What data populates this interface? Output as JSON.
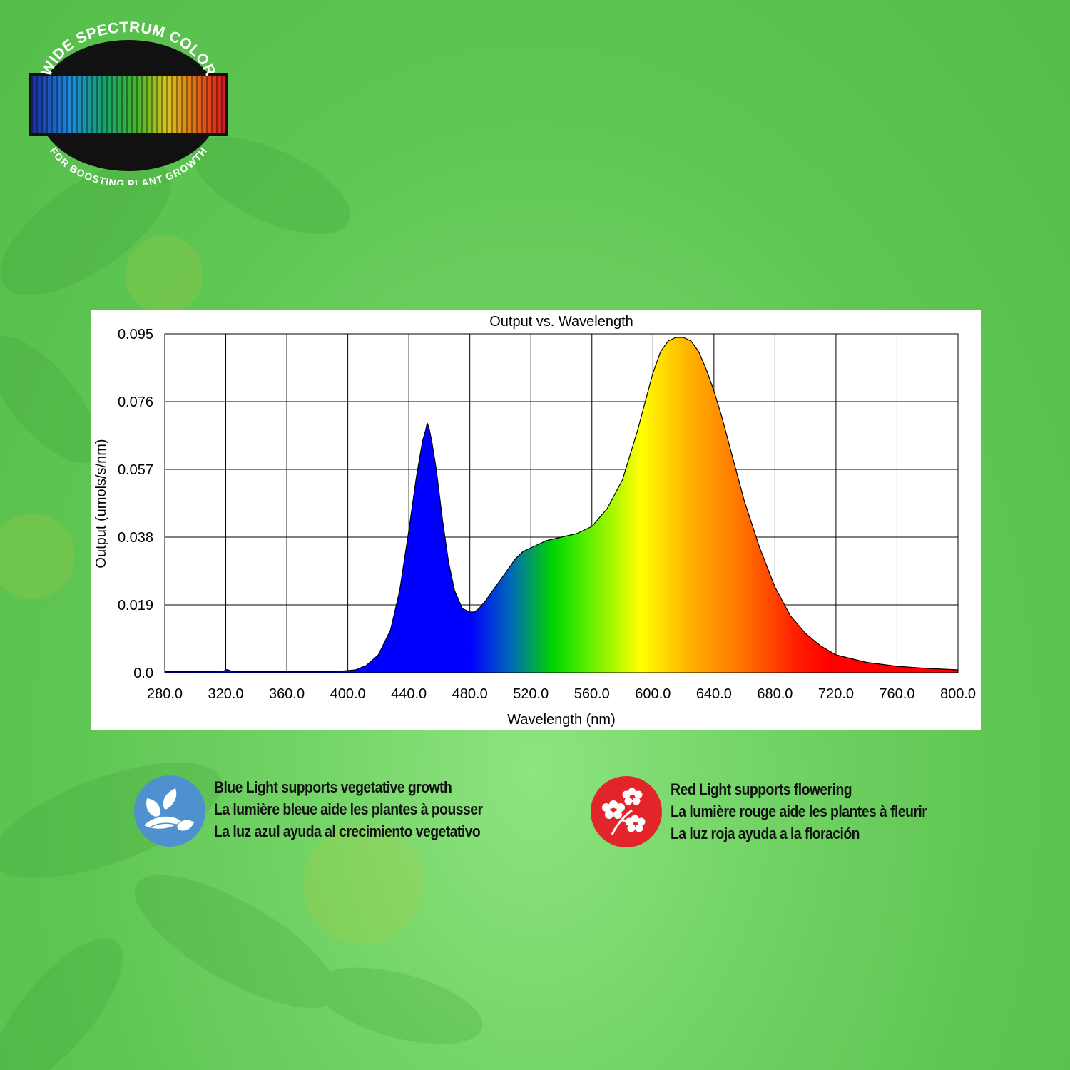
{
  "logo": {
    "top_text": "WIDE SPECTRUM COLOR",
    "bottom_text": "FOR BOOSTING PLANT GROWTH"
  },
  "colors": {
    "blue_badge": "#4f90cf",
    "red_badge": "#e2252b"
  },
  "chart_data": {
    "type": "area",
    "title": "Output vs. Wavelength",
    "xlabel": "Wavelength (nm)",
    "ylabel": "Output (umols/s/nm)",
    "xlim": [
      280,
      800
    ],
    "ylim": [
      0,
      0.095
    ],
    "x_ticks": [
      "280.0",
      "320.0",
      "360.0",
      "400.0",
      "440.0",
      "480.0",
      "520.0",
      "560.0",
      "600.0",
      "640.0",
      "680.0",
      "720.0",
      "760.0",
      "800.0"
    ],
    "y_ticks": [
      "0.0",
      "0.019",
      "0.038",
      "0.057",
      "0.076",
      "0.095"
    ],
    "grid": true,
    "fill": "spectral colour gradient",
    "series": [
      {
        "x": [
          280,
          300,
          318,
          321,
          324,
          330,
          360,
          380,
          395,
          405,
          412,
          420,
          428,
          434,
          440,
          445,
          449,
          451,
          452,
          453,
          455,
          458,
          462,
          466,
          470,
          475,
          480,
          483,
          486,
          490,
          495,
          500,
          505,
          510,
          515,
          520,
          530,
          540,
          550,
          560,
          570,
          580,
          590,
          595,
          600,
          605,
          610,
          615,
          620,
          625,
          630,
          635,
          640,
          645,
          650,
          655,
          660,
          670,
          680,
          690,
          700,
          710,
          720,
          740,
          760,
          780,
          800
        ],
        "y": [
          0.0003,
          0.0003,
          0.0004,
          0.0009,
          0.0004,
          0.0003,
          0.0003,
          0.0003,
          0.0004,
          0.0008,
          0.002,
          0.005,
          0.012,
          0.023,
          0.04,
          0.055,
          0.065,
          0.068,
          0.07,
          0.069,
          0.065,
          0.057,
          0.043,
          0.031,
          0.023,
          0.018,
          0.017,
          0.017,
          0.018,
          0.02,
          0.023,
          0.026,
          0.029,
          0.032,
          0.034,
          0.035,
          0.037,
          0.038,
          0.039,
          0.041,
          0.046,
          0.054,
          0.068,
          0.076,
          0.084,
          0.09,
          0.093,
          0.094,
          0.094,
          0.093,
          0.09,
          0.085,
          0.079,
          0.072,
          0.064,
          0.056,
          0.048,
          0.035,
          0.024,
          0.016,
          0.011,
          0.0075,
          0.005,
          0.0029,
          0.0018,
          0.0012,
          0.0008
        ]
      }
    ]
  },
  "legend_blocks": [
    {
      "icon": "leaves-icon",
      "lines": [
        "Blue Light supports vegetative growth",
        "La lumière bleue aide les plantes à pousser",
        "La luz azul ayuda al crecimiento vegetativo"
      ]
    },
    {
      "icon": "flowers-icon",
      "lines": [
        "Red Light supports flowering",
        "La lumière rouge aide les plantes à fleurir",
        "La luz roja ayuda a la floración"
      ]
    }
  ]
}
